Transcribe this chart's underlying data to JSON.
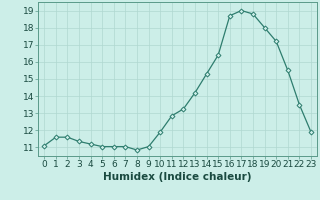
{
  "x": [
    0,
    1,
    2,
    3,
    4,
    5,
    6,
    7,
    8,
    9,
    10,
    11,
    12,
    13,
    14,
    15,
    16,
    17,
    18,
    19,
    20,
    21,
    22,
    23
  ],
  "y": [
    11.1,
    11.6,
    11.6,
    11.35,
    11.2,
    11.05,
    11.05,
    11.05,
    10.85,
    11.05,
    11.9,
    12.85,
    13.25,
    14.2,
    15.3,
    16.4,
    18.7,
    19.0,
    18.8,
    18.0,
    17.2,
    15.5,
    13.5,
    11.9
  ],
  "line_color": "#2e7d6e",
  "marker": "D",
  "marker_size": 2.5,
  "bg_color": "#cceee8",
  "grid_color": "#b0d8d0",
  "xlabel": "Humidex (Indice chaleur)",
  "xlim": [
    -0.5,
    23.5
  ],
  "ylim": [
    10.5,
    19.5
  ],
  "yticks": [
    11,
    12,
    13,
    14,
    15,
    16,
    17,
    18,
    19
  ],
  "xticks": [
    0,
    1,
    2,
    3,
    4,
    5,
    6,
    7,
    8,
    9,
    10,
    11,
    12,
    13,
    14,
    15,
    16,
    17,
    18,
    19,
    20,
    21,
    22,
    23
  ],
  "xtick_labels": [
    "0",
    "1",
    "2",
    "3",
    "4",
    "5",
    "6",
    "7",
    "8",
    "9",
    "10",
    "11",
    "12",
    "13",
    "14",
    "15",
    "16",
    "17",
    "18",
    "19",
    "20",
    "21",
    "22",
    "23"
  ],
  "font_size": 6.5,
  "xlabel_fontsize": 7.5
}
